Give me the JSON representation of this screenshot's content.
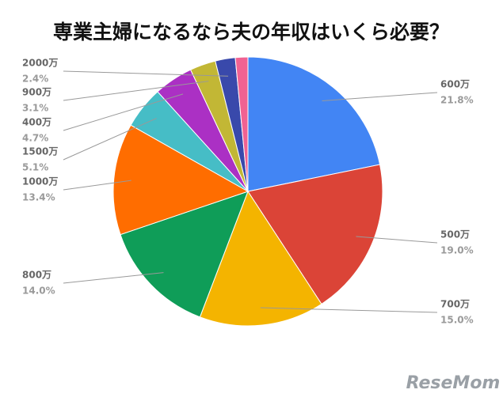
{
  "chart_data": {
    "type": "pie",
    "title": "専業主婦になるなら夫の年収はいくら必要？",
    "categories": [
      "600万",
      "500万",
      "700万",
      "800万",
      "1000万",
      "1500万",
      "400万",
      "900万",
      "2000万",
      null
    ],
    "values": [
      21.8,
      19.0,
      15.0,
      14.0,
      13.4,
      5.1,
      4.7,
      3.1,
      2.4,
      1.5
    ],
    "value_labels": [
      "21.8%",
      "19.0%",
      "15.0%",
      "14.0%",
      "13.4%",
      "5.1%",
      "4.7%",
      "3.1%",
      "2.4%",
      null
    ],
    "colors": [
      "#4285f4",
      "#db4437",
      "#f4b400",
      "#0f9d58",
      "#ff6d00",
      "#46bdc6",
      "#ab30c4",
      "#c2b735",
      "#3949ab",
      "#f06292"
    ],
    "watermark": "ReseMom"
  }
}
